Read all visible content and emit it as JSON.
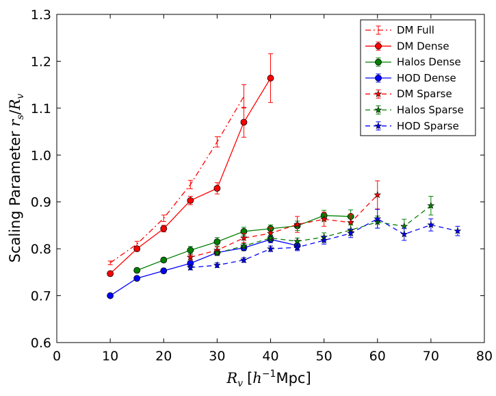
{
  "chart_data": {
    "type": "line",
    "title": "",
    "xlabel_main": "R",
    "xlabel_sub": "v",
    "xlabel_units_pre": "[",
    "xlabel_units_h": "h",
    "xlabel_units_exp": "−1",
    "xlabel_units_post": "Mpc]",
    "ylabel_text": "Scaling Parameter ",
    "ylabel_r": "r",
    "ylabel_r_sub": "s",
    "ylabel_slash": "/",
    "ylabel_R": "R",
    "ylabel_R_sub": "v",
    "xlim": [
      0,
      80
    ],
    "ylim": [
      0.6,
      1.3
    ],
    "x_ticks": [
      0,
      10,
      20,
      30,
      40,
      50,
      60,
      70,
      80
    ],
    "y_ticks": [
      0.6,
      0.7,
      0.8,
      0.9,
      1.0,
      1.1,
      1.2,
      1.3
    ],
    "x_tick_labels": [
      "0",
      "10",
      "20",
      "30",
      "40",
      "50",
      "60",
      "70",
      "80"
    ],
    "y_tick_labels": [
      "0.6",
      "0.7",
      "0.8",
      "0.9",
      "1.0",
      "1.1",
      "1.2",
      "1.3"
    ],
    "grid": false,
    "legend_position": "top-right",
    "series": [
      {
        "name": "DM Full",
        "color": "#ff0000",
        "linestyle": "dashdot",
        "marker": "none",
        "x": [
          10,
          15,
          20,
          25,
          30,
          35
        ],
        "y": [
          0.77,
          0.81,
          0.865,
          0.937,
          1.028,
          1.125
        ],
        "err": [
          0.004,
          0.006,
          0.007,
          0.009,
          0.011,
          0.025
        ]
      },
      {
        "name": "DM Dense",
        "color": "#ff0000",
        "linestyle": "solid",
        "marker": "circle",
        "x": [
          10,
          15,
          20,
          25,
          30,
          35,
          40
        ],
        "y": [
          0.747,
          0.8,
          0.843,
          0.903,
          0.929,
          1.07,
          1.164
        ],
        "err": [
          0.003,
          0.005,
          0.007,
          0.009,
          0.012,
          0.032,
          0.052
        ]
      },
      {
        "name": "Halos Dense",
        "color": "#008000",
        "linestyle": "solid",
        "marker": "circle",
        "x": [
          15,
          20,
          25,
          30,
          35,
          40,
          45,
          50,
          55
        ],
        "y": [
          0.754,
          0.776,
          0.797,
          0.815,
          0.837,
          0.843,
          0.849,
          0.871,
          0.869
        ],
        "err": [
          0.003,
          0.005,
          0.008,
          0.009,
          0.009,
          0.008,
          0.01,
          0.011,
          0.014
        ]
      },
      {
        "name": "HOD Dense",
        "color": "#0000ff",
        "linestyle": "solid",
        "marker": "circle",
        "x": [
          10,
          15,
          20,
          25,
          30,
          35,
          40,
          45
        ],
        "y": [
          0.7,
          0.737,
          0.753,
          0.769,
          0.792,
          0.802,
          0.82,
          0.807
        ],
        "err": [
          0.002,
          0.003,
          0.005,
          0.005,
          0.006,
          0.006,
          0.007,
          0.009
        ]
      },
      {
        "name": "DM Sparse",
        "color": "#ff0000",
        "linestyle": "dashed",
        "marker": "star",
        "x": [
          25,
          30,
          35,
          40,
          45,
          50,
          55,
          60
        ],
        "y": [
          0.782,
          0.797,
          0.823,
          0.833,
          0.852,
          0.863,
          0.856,
          0.915
        ],
        "err": [
          0.005,
          0.007,
          0.01,
          0.012,
          0.017,
          0.015,
          0.018,
          0.03
        ]
      },
      {
        "name": "Halos Sparse",
        "color": "#008000",
        "linestyle": "dashed",
        "marker": "star",
        "x": [
          30,
          35,
          40,
          45,
          50,
          55,
          60,
          65,
          70
        ],
        "y": [
          0.791,
          0.806,
          0.823,
          0.816,
          0.825,
          0.84,
          0.857,
          0.848,
          0.892
        ],
        "err": [
          0.004,
          0.005,
          0.006,
          0.007,
          0.009,
          0.011,
          0.013,
          0.015,
          0.02
        ]
      },
      {
        "name": "HOD Sparse",
        "color": "#0000ff",
        "linestyle": "dashed",
        "marker": "star",
        "x": [
          25,
          30,
          35,
          40,
          45,
          50,
          55,
          60,
          65,
          70,
          75
        ],
        "y": [
          0.76,
          0.765,
          0.776,
          0.8,
          0.803,
          0.818,
          0.833,
          0.864,
          0.831,
          0.851,
          0.838
        ],
        "err": [
          0.005,
          0.005,
          0.005,
          0.006,
          0.007,
          0.008,
          0.009,
          0.02,
          0.013,
          0.013,
          0.01
        ]
      }
    ]
  }
}
